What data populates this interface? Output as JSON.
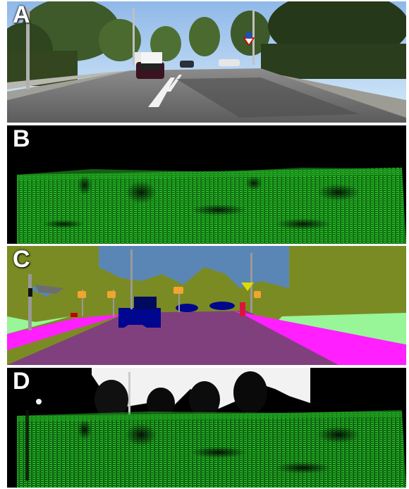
{
  "panels": [
    {
      "label": "A",
      "kind": "rgb-photo"
    },
    {
      "label": "B",
      "kind": "green-point-projection"
    },
    {
      "label": "C",
      "kind": "semantic-segmentation"
    },
    {
      "label": "D",
      "kind": "green-point-projection-over-photo"
    }
  ],
  "colors": {
    "sky": "#5a86b6",
    "vegetation": "#7b8b23",
    "road": "#80407e",
    "sidewalk": "#ff1fff",
    "terrain": "#98f598",
    "car": "#00068e",
    "pole": "#999999",
    "sign": "#dcdc00",
    "traffic_light": "#f0a530",
    "person": "#dc143c",
    "points": "#18c018"
  }
}
